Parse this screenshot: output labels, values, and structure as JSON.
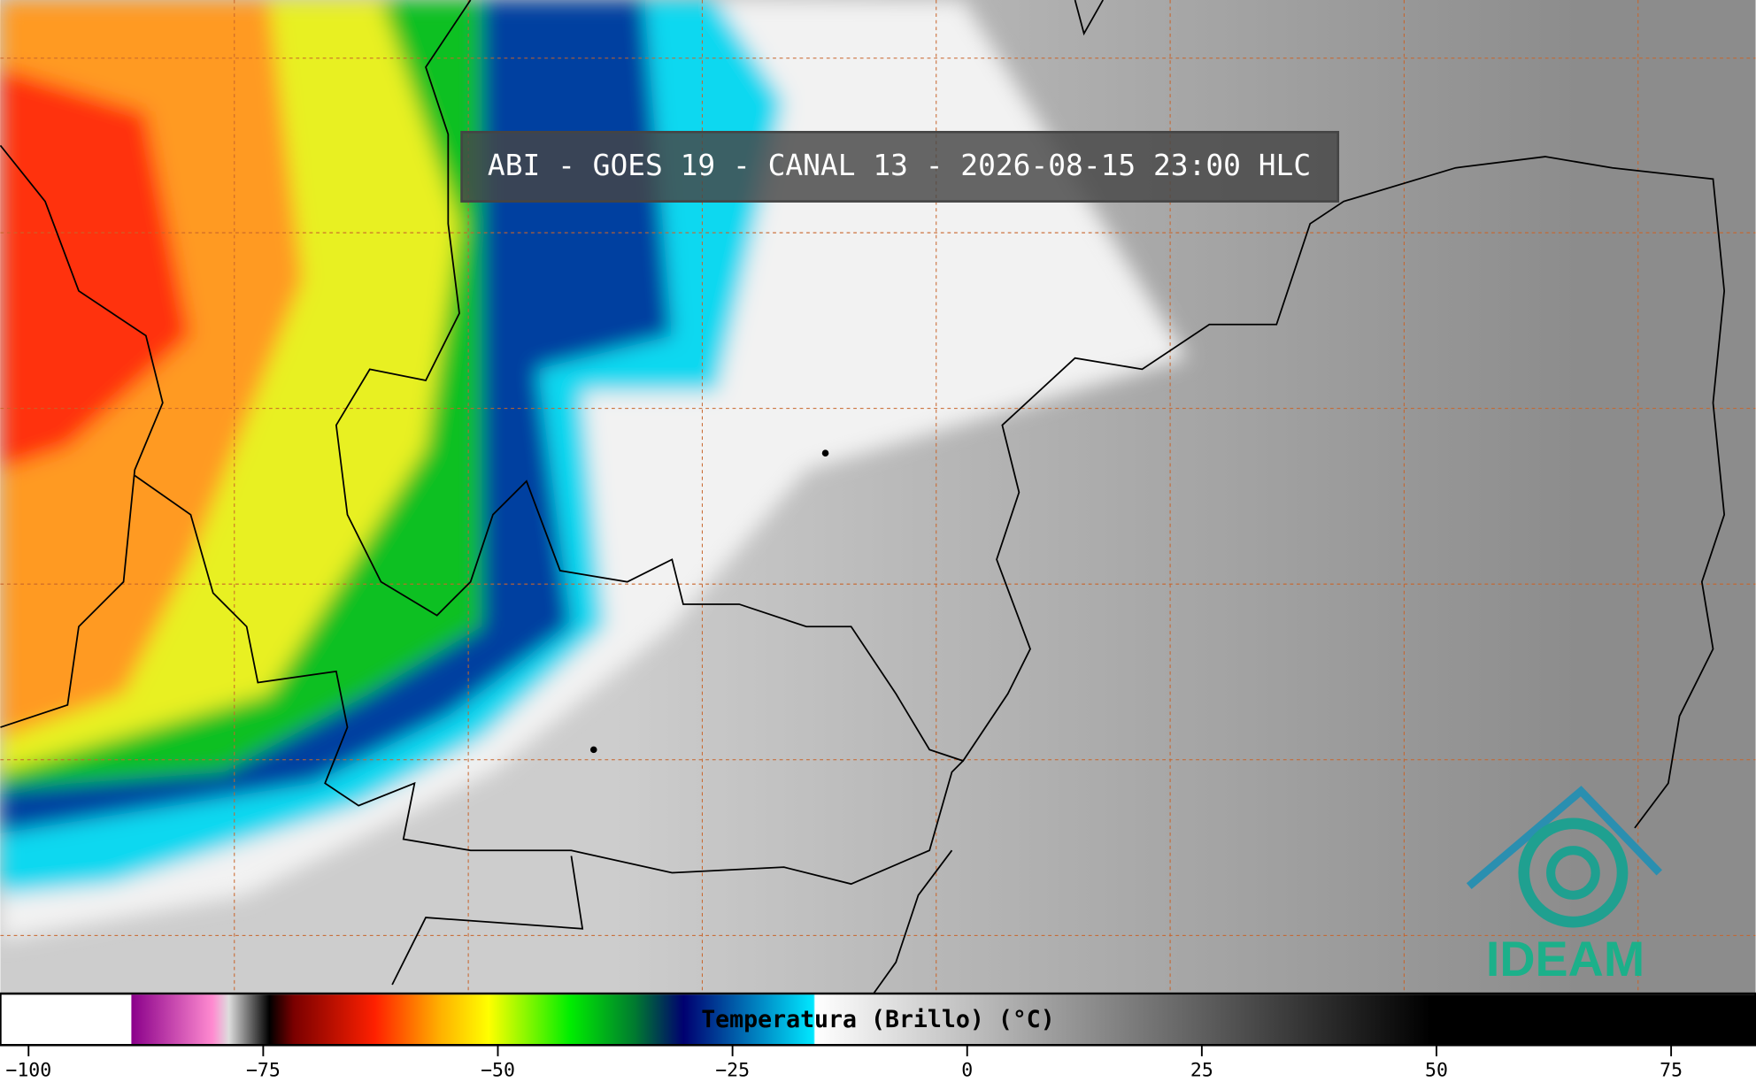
{
  "header": {
    "title": "ABI - GOES 19 - CANAL 13 - 2026-08-15 23:00 HLC"
  },
  "colorbar": {
    "label": "Temperatura (Brillo) (°C)",
    "xlim": [
      -103,
      84
    ],
    "xticks": [
      {
        "value": -100,
        "label": "−100"
      },
      {
        "value": -75,
        "label": "−75"
      },
      {
        "value": -50,
        "label": "−50"
      },
      {
        "value": -25,
        "label": "−25"
      },
      0,
      25,
      50,
      75
    ]
  },
  "logo": {
    "text": "IDEAM"
  }
}
